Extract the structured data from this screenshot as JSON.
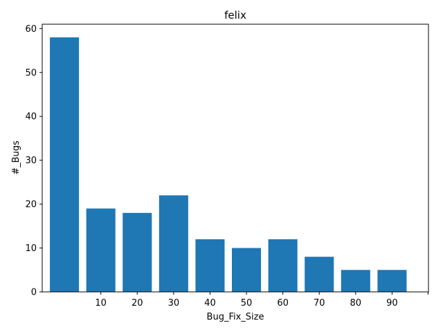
{
  "chart_data": {
    "type": "bar",
    "title": "felix",
    "xlabel": "Bug_Fix_Size",
    "ylabel": "#_Bugs",
    "x": [
      0,
      10,
      20,
      30,
      40,
      50,
      60,
      70,
      80,
      90
    ],
    "values": [
      58,
      19,
      18,
      22,
      12,
      10,
      12,
      8,
      5,
      5
    ],
    "x_tick_labels": [
      "10",
      "20",
      "30",
      "40",
      "50",
      "60",
      "70",
      "80",
      "90",
      ""
    ],
    "y_ticks": [
      0,
      10,
      20,
      30,
      40,
      50,
      60
    ],
    "y_tick_labels": [
      "0",
      "10",
      "20",
      "30",
      "40",
      "50",
      "60"
    ],
    "ylim": [
      0,
      61
    ],
    "xlim": [
      -6.1,
      100
    ],
    "grid": false,
    "bar_color": "#1f77b4"
  }
}
